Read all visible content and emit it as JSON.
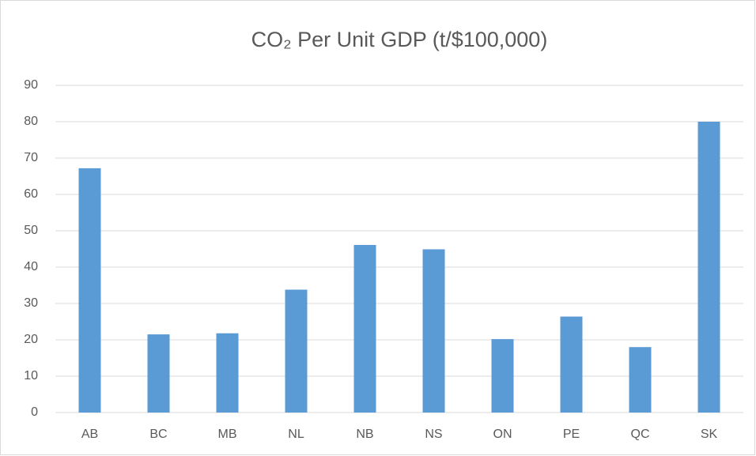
{
  "chart_data": {
    "type": "bar",
    "title": "CO₂ Per Unit GDP (t/$100,000)",
    "categories": [
      "AB",
      "BC",
      "MB",
      "NL",
      "NB",
      "NS",
      "ON",
      "PE",
      "QC",
      "SK"
    ],
    "values": [
      67.2,
      21.5,
      21.8,
      33.8,
      46.1,
      44.9,
      20.2,
      26.4,
      18,
      80
    ],
    "color": "#5b9bd5",
    "ylim": [
      0,
      90
    ],
    "yticks": [
      0,
      10,
      20,
      30,
      40,
      50,
      60,
      70,
      80,
      90
    ],
    "grid": true
  }
}
